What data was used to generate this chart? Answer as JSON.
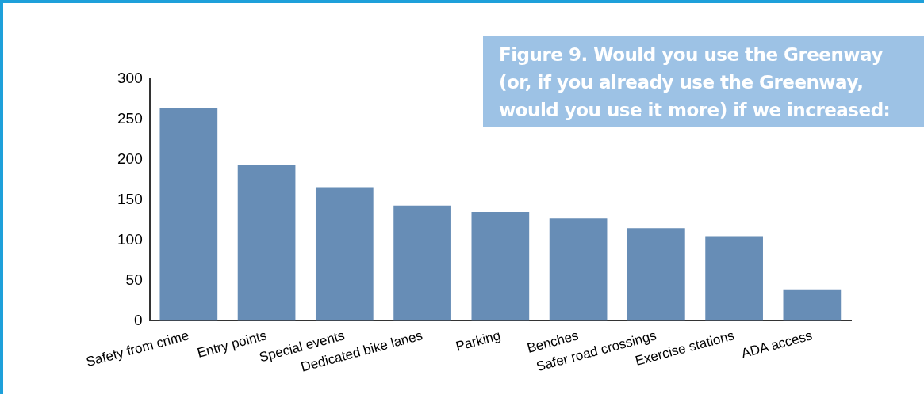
{
  "chart_data": {
    "type": "bar",
    "title": "Figure 9. Would you use the Greenway (or, if you already use the Greenway, would you use it more) if we increased:",
    "categories": [
      "Safety from crime",
      "Entry points",
      "Special events",
      "Dedicated bike lanes",
      "Parking",
      "Benches",
      "Safer road crossings",
      "Exercise stations",
      "ADA access"
    ],
    "values": [
      264,
      193,
      166,
      143,
      135,
      127,
      115,
      105,
      39
    ],
    "color": "#678db6",
    "ylim": [
      0,
      300
    ],
    "yticks": [
      0,
      50,
      100,
      150,
      200,
      250,
      300
    ],
    "grid": false,
    "legend": false
  }
}
